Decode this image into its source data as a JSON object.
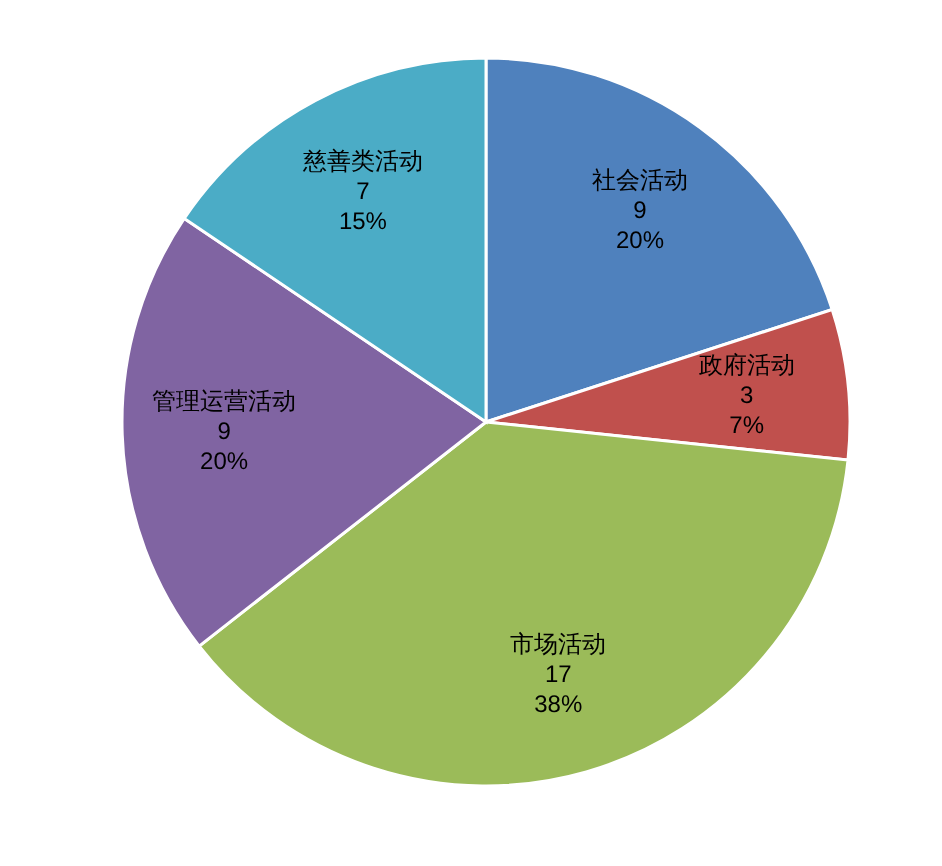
{
  "chart_data": {
    "type": "pie",
    "categories": [
      "社会活动",
      "政府活动",
      "市场活动",
      "管理运营活动",
      "慈善类活动"
    ],
    "values": [
      9,
      3,
      17,
      9,
      7
    ],
    "value_labels": [
      "9\n20%",
      "3\n7%",
      "17\n38%",
      "9\n20%",
      "7\n15%"
    ],
    "colors": [
      "#4f81bd",
      "#c0504d",
      "#9bbb59",
      "#8064a2",
      "#4bacc6"
    ],
    "legend": false
  }
}
